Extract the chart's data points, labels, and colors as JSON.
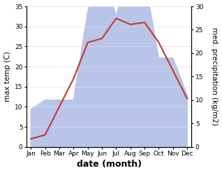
{
  "months": [
    "Jan",
    "Feb",
    "Mar",
    "Apr",
    "May",
    "Jun",
    "Jul",
    "Aug",
    "Sep",
    "Oct",
    "Nov",
    "Dec"
  ],
  "temp": [
    2,
    3,
    10,
    17,
    26,
    27,
    32,
    30.5,
    31,
    26,
    19,
    12
  ],
  "precip": [
    8,
    10,
    10,
    10,
    29,
    38,
    28,
    38,
    36,
    19,
    19,
    11
  ],
  "temp_color": "#c0392b",
  "precip_fill_color": "#b8c4e8",
  "background": "#ffffff",
  "left_ylim": [
    0,
    35
  ],
  "right_ylim": [
    0,
    30
  ],
  "left_yticks": [
    0,
    5,
    10,
    15,
    20,
    25,
    30,
    35
  ],
  "right_yticks": [
    0,
    5,
    10,
    15,
    20,
    25,
    30
  ],
  "xlabel": "date (month)",
  "ylabel_left": "max temp (C)",
  "ylabel_right": "med. precipitation (kg/m2)",
  "axis_fontsize": 7.5,
  "tick_fontsize": 6.5,
  "xlabel_fontsize": 9
}
